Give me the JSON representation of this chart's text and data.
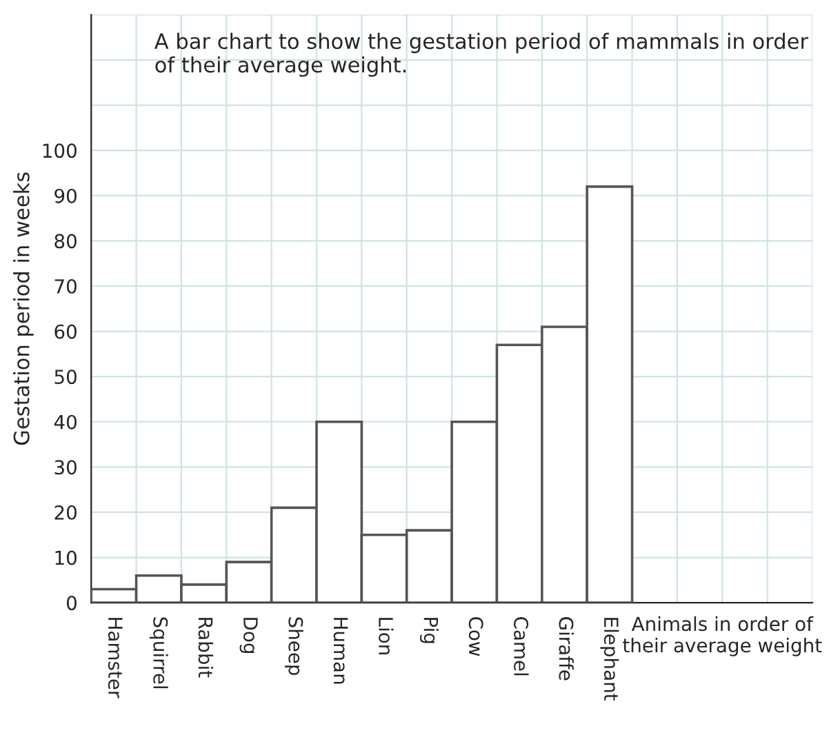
{
  "chart_data": {
    "type": "bar",
    "title": "A bar chart to show the gestation period of mammals in order of their average weight.",
    "xlabel": "Animals in order of their average weight",
    "ylabel": "Gestation period in weeks",
    "categories": [
      "Hamster",
      "Squirrel",
      "Rabbit",
      "Dog",
      "Sheep",
      "Human",
      "Lion",
      "Pig",
      "Cow",
      "Camel",
      "Giraffe",
      "Elephant"
    ],
    "values": [
      3,
      6,
      4,
      9,
      21,
      40,
      15,
      16,
      40,
      57,
      61,
      92
    ],
    "color": "#ffffff",
    "ylim": [
      0,
      130
    ],
    "yticks": [
      0,
      10,
      20,
      30,
      40,
      50,
      60,
      70,
      80,
      90,
      100
    ],
    "grid": true
  }
}
